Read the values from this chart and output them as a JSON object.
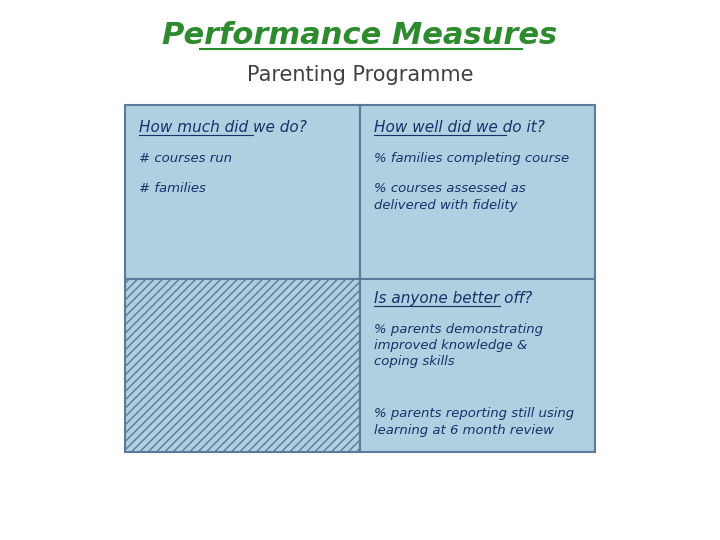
{
  "title": "Performance Measures",
  "subtitle": "Parenting Programme",
  "title_color": "#2d8a2d",
  "subtitle_color": "#404040",
  "text_color": "#1a306a",
  "cell_bg": "#b0cfe0",
  "border_color": "#5a7a9a",
  "top_left_header": "How much did we do?",
  "top_left_body": [
    "# courses run",
    "# families"
  ],
  "top_right_header": "How well did we do it?",
  "top_right_body": [
    "% families completing course",
    "% courses assessed as\ndelivered with fidelity"
  ],
  "bottom_right_header": "Is anyone better off?",
  "bottom_right_body": [
    "% parents demonstrating\nimproved knowledge &\ncoping skills",
    "% parents reporting still using\nlearning at 6 month review"
  ]
}
